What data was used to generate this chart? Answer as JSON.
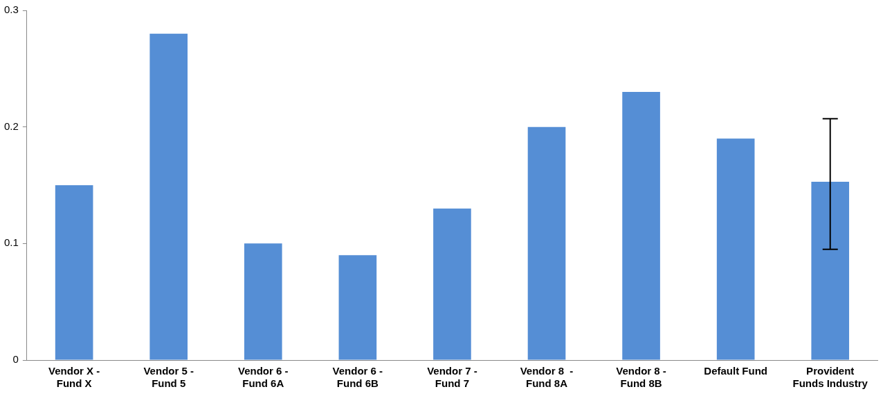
{
  "chart_data": {
    "type": "bar",
    "categories": [
      "Vendor X -\nFund X",
      "Vendor 5 -\nFund 5",
      "Vendor 6 -\nFund 6A",
      "Vendor 6 -\nFund 6B",
      "Vendor 7 -\nFund 7",
      "Vendor 8  -\nFund 8A",
      "Vendor 8 -\nFund 8B",
      "Default Fund",
      "Provident\nFunds Industry"
    ],
    "values": [
      0.15,
      0.28,
      0.1,
      0.09,
      0.13,
      0.2,
      0.23,
      0.19,
      0.153
    ],
    "errors": [
      null,
      null,
      null,
      null,
      null,
      null,
      null,
      null,
      [
        0.095,
        0.207
      ]
    ],
    "color": "#558ed5",
    "ylim": [
      0,
      0.3
    ],
    "yticks": [
      0,
      0.1,
      0.2,
      0.3
    ],
    "grid": false,
    "legend": false
  }
}
